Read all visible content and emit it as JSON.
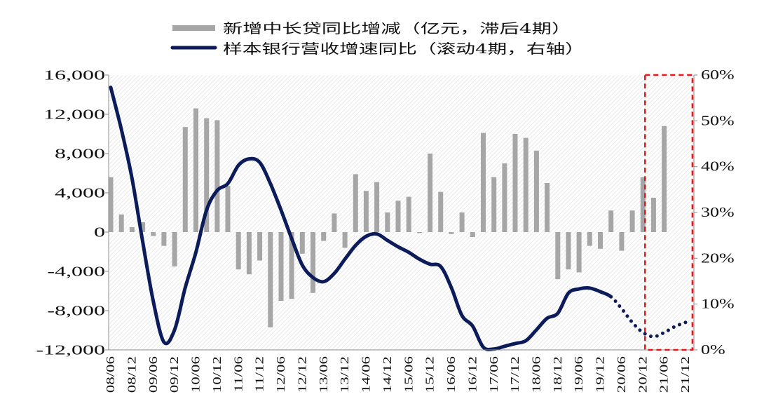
{
  "chart_data": {
    "type": "bar",
    "title": "",
    "legend_position": "top",
    "grid": false,
    "x_tick_labels": [
      "08/06",
      "08/12",
      "09/06",
      "09/12",
      "10/06",
      "10/12",
      "11/06",
      "11/12",
      "12/06",
      "12/12",
      "13/06",
      "13/12",
      "14/06",
      "14/12",
      "15/06",
      "15/12",
      "16/06",
      "16/12",
      "17/06",
      "17/12",
      "18/06",
      "18/12",
      "19/06",
      "19/12",
      "20/06",
      "20/12",
      "21/06",
      "21/12"
    ],
    "x_tick_every": 2,
    "y_left": {
      "min": -12000,
      "max": 16000,
      "ticks": [
        16000,
        12000,
        8000,
        4000,
        0,
        -4000,
        -8000,
        -12000
      ],
      "tick_labels": [
        "16,000",
        "12,000",
        "8,000",
        "4,000",
        "0",
        "-4,000",
        "-8,000",
        "-12,000"
      ]
    },
    "y_right": {
      "min": 0,
      "max": 60,
      "ticks": [
        60,
        50,
        40,
        30,
        20,
        10,
        0
      ],
      "tick_labels": [
        "60%",
        "50%",
        "40%",
        "30%",
        "20%",
        "10%",
        "0%"
      ]
    },
    "series": [
      {
        "name": "新增中长贷同比增减（亿元，滞后4期）",
        "type": "bar",
        "color": "#a6a6a6",
        "values": [
          5600,
          1800,
          500,
          1000,
          -400,
          -1400,
          -3500,
          10700,
          12600,
          11600,
          11400,
          4700,
          -3800,
          -4300,
          -2900,
          -9700,
          -7000,
          -6800,
          -2200,
          -6200,
          -900,
          1900,
          -1600,
          5900,
          4200,
          5100,
          2000,
          3200,
          3600,
          -100,
          8000,
          4100,
          -200,
          2000,
          -500,
          10100,
          5600,
          7000,
          10000,
          9600,
          8300,
          5000,
          -4800,
          -3800,
          -4100,
          -1400,
          -1700,
          2200,
          -1900,
          2200,
          5600,
          3500,
          10800,
          null,
          null
        ]
      },
      {
        "name": "样本银行营收增速同比（滚动4期，右轴）",
        "type": "line",
        "color": "#0c1c5a",
        "values": [
          57.3,
          48.1,
          37.4,
          23.6,
          10.6,
          1.7,
          4.4,
          13.6,
          21.3,
          30.5,
          34.8,
          36.3,
          40.3,
          41.7,
          40.9,
          36.3,
          30.5,
          24.3,
          18.5,
          15.8,
          14.9,
          16.7,
          19.8,
          22.8,
          24.8,
          25.3,
          23.9,
          22.5,
          21.3,
          19.8,
          18.7,
          18.2,
          13.6,
          7.5,
          5.2,
          0.6,
          0.2,
          0.8,
          1.4,
          2.0,
          4.4,
          6.9,
          8.0,
          12.4,
          13.3,
          13.5,
          12.7,
          11.6,
          9.0,
          6.0,
          3.8,
          2.9,
          3.8,
          5.1,
          6.0
        ],
        "dotted_from_index": 47
      }
    ],
    "highlight": {
      "from_index": 50,
      "to_index": 54,
      "color": "#e8161b"
    }
  }
}
